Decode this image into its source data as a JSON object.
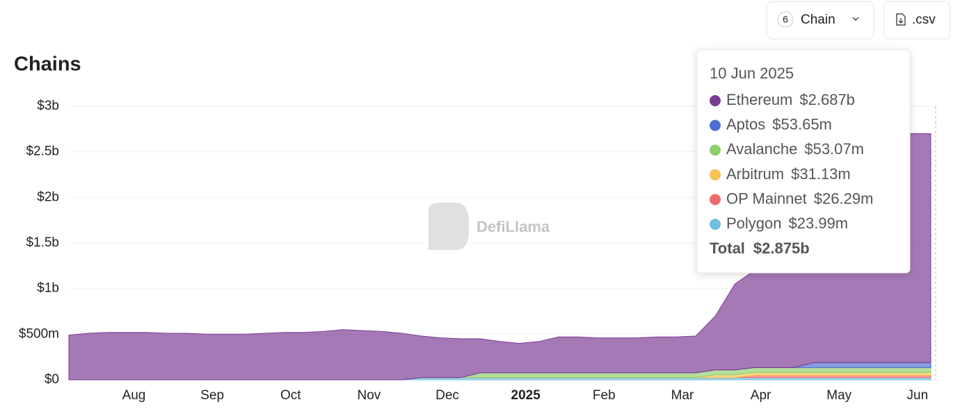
{
  "chart_data": {
    "type": "stacked-area",
    "title": "Chains",
    "watermark": "DefiLlama",
    "categories": [
      null,
      null,
      null,
      "Aug",
      null,
      null,
      null,
      "Sep",
      null,
      null,
      null,
      "Oct",
      null,
      null,
      null,
      "Nov",
      null,
      null,
      null,
      "Dec",
      null,
      null,
      null,
      "2025",
      null,
      null,
      null,
      "Feb",
      null,
      null,
      null,
      "Mar",
      null,
      null,
      null,
      "Apr",
      null,
      null,
      null,
      "May",
      null,
      null,
      null,
      "Jun",
      null
    ],
    "series": [
      {
        "name": "Ethereum",
        "color": "#7b3a93",
        "values": [
          490000000,
          510000000,
          520000000,
          520000000,
          520000000,
          510000000,
          510000000,
          500000000,
          500000000,
          500000000,
          510000000,
          520000000,
          520000000,
          530000000,
          550000000,
          540000000,
          530000000,
          510000000,
          456000000,
          436000000,
          426000000,
          373000000,
          343000000,
          323000000,
          343000000,
          393000000,
          393000000,
          383000000,
          383000000,
          383000000,
          393000000,
          393000000,
          403000000,
          592000000,
          942000000,
          1066000000,
          1216000000,
          1416000000,
          1562000000,
          1762000000,
          1962000000,
          2162000000,
          2362000000,
          2512000000,
          2512000000
        ]
      },
      {
        "name": "Aptos",
        "color": "#4a6fd1",
        "values": [
          0,
          0,
          0,
          0,
          0,
          0,
          0,
          0,
          0,
          0,
          0,
          0,
          0,
          0,
          0,
          0,
          0,
          0,
          0,
          0,
          0,
          0,
          0,
          0,
          0,
          0,
          0,
          0,
          0,
          0,
          0,
          0,
          0,
          0,
          0,
          0,
          0,
          0,
          54000000,
          54000000,
          54000000,
          54000000,
          54000000,
          54000000,
          54000000
        ]
      },
      {
        "name": "Avalanche",
        "color": "#8fcf6b",
        "values": [
          0,
          0,
          0,
          0,
          0,
          0,
          0,
          0,
          0,
          0,
          0,
          0,
          0,
          0,
          0,
          0,
          0,
          0,
          0,
          0,
          0,
          53000000,
          53000000,
          53000000,
          53000000,
          53000000,
          53000000,
          53000000,
          53000000,
          53000000,
          53000000,
          53000000,
          53000000,
          53000000,
          53000000,
          53000000,
          53000000,
          53000000,
          53000000,
          53000000,
          53000000,
          53000000,
          53000000,
          53000000,
          53000000
        ]
      },
      {
        "name": "Arbitrum",
        "color": "#f6c453",
        "values": [
          0,
          0,
          0,
          0,
          0,
          0,
          0,
          0,
          0,
          0,
          0,
          0,
          0,
          0,
          0,
          0,
          0,
          0,
          0,
          0,
          0,
          0,
          0,
          0,
          0,
          0,
          0,
          0,
          0,
          0,
          0,
          0,
          0,
          31000000,
          31000000,
          31000000,
          31000000,
          31000000,
          31000000,
          31000000,
          31000000,
          31000000,
          31000000,
          31000000,
          31000000
        ]
      },
      {
        "name": "OP Mainnet",
        "color": "#ef6b6b",
        "values": [
          0,
          0,
          0,
          0,
          0,
          0,
          0,
          0,
          0,
          0,
          0,
          0,
          0,
          0,
          0,
          0,
          0,
          0,
          0,
          0,
          0,
          0,
          0,
          0,
          0,
          0,
          0,
          0,
          0,
          0,
          0,
          0,
          0,
          0,
          0,
          26000000,
          26000000,
          26000000,
          26000000,
          26000000,
          26000000,
          26000000,
          26000000,
          26000000,
          26000000
        ]
      },
      {
        "name": "Polygon",
        "color": "#6fbfe0",
        "values": [
          0,
          0,
          0,
          0,
          0,
          0,
          0,
          0,
          0,
          0,
          0,
          0,
          0,
          0,
          0,
          0,
          0,
          0,
          24000000,
          24000000,
          24000000,
          24000000,
          24000000,
          24000000,
          24000000,
          24000000,
          24000000,
          24000000,
          24000000,
          24000000,
          24000000,
          24000000,
          24000000,
          24000000,
          24000000,
          24000000,
          24000000,
          24000000,
          24000000,
          24000000,
          24000000,
          24000000,
          24000000,
          24000000,
          24000000
        ]
      }
    ],
    "ylim": [
      0,
      3000000000
    ],
    "yticks": [
      {
        "value": 0,
        "label": "$0"
      },
      {
        "value": 500000000,
        "label": "$500m"
      },
      {
        "value": 1000000000,
        "label": "$1b"
      },
      {
        "value": 1500000000,
        "label": "$1.5b"
      },
      {
        "value": 2000000000,
        "label": "$2b"
      },
      {
        "value": 2500000000,
        "label": "$2.5b"
      },
      {
        "value": 3000000000,
        "label": "$3b"
      }
    ],
    "grid": true,
    "tooltip": {
      "date": "10 Jun 2025",
      "values": [
        2687000000,
        53650000,
        53070000,
        31130000,
        26290000,
        23990000
      ],
      "value_labels": [
        "$2.687b",
        "$53.65m",
        "$53.07m",
        "$31.13m",
        "$26.29m",
        "$23.99m"
      ],
      "total_text": "Total",
      "total": 2875000000,
      "total_label": "$2.875b"
    }
  },
  "controls": {
    "chain_count": 6,
    "chain_button": "Chain",
    "csv_button": ".csv"
  }
}
